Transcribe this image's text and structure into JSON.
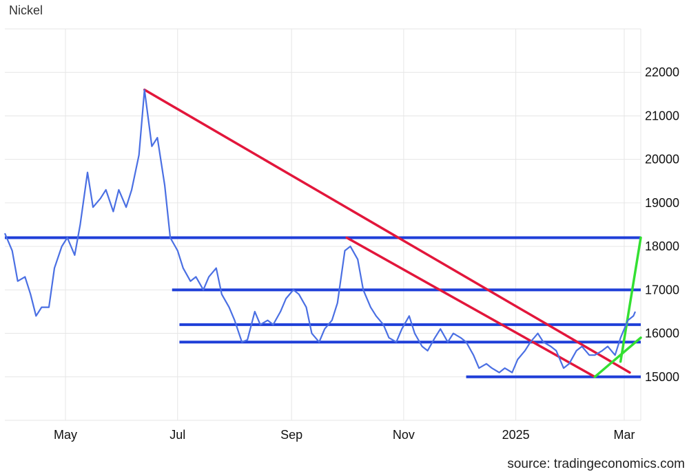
{
  "chart_data": {
    "type": "line",
    "title": "Nickel",
    "source": "source: tradingeconomics.com",
    "xlabel": "",
    "ylabel": "",
    "x_range": [
      "2024-03-29",
      "2025-03-10"
    ],
    "ylim": [
      14000,
      23000
    ],
    "yticks": [
      15000,
      16000,
      17000,
      18000,
      19000,
      20000,
      21000,
      22000
    ],
    "xticks": [
      {
        "date": "2024-05-01",
        "label": "May"
      },
      {
        "date": "2024-07-01",
        "label": "Jul"
      },
      {
        "date": "2024-09-01",
        "label": "Sep"
      },
      {
        "date": "2024-11-01",
        "label": "Nov"
      },
      {
        "date": "2025-01-01",
        "label": "2025"
      },
      {
        "date": "2025-03-01",
        "label": "Mar"
      }
    ],
    "grid": true,
    "colors": {
      "series": "#4a6fe3",
      "support": "#1f3fd8",
      "downtrend": "#e2163b",
      "uptrend": "#34e032"
    },
    "series": [
      {
        "color": "#4a6fe3",
        "points": [
          [
            "2024-03-29",
            18300
          ],
          [
            "2024-04-02",
            17900
          ],
          [
            "2024-04-05",
            17200
          ],
          [
            "2024-04-09",
            17300
          ],
          [
            "2024-04-12",
            16900
          ],
          [
            "2024-04-15",
            16400
          ],
          [
            "2024-04-18",
            16600
          ],
          [
            "2024-04-22",
            16600
          ],
          [
            "2024-04-25",
            17500
          ],
          [
            "2024-04-29",
            18000
          ],
          [
            "2024-05-02",
            18200
          ],
          [
            "2024-05-06",
            17800
          ],
          [
            "2024-05-09",
            18500
          ],
          [
            "2024-05-13",
            19700
          ],
          [
            "2024-05-16",
            18900
          ],
          [
            "2024-05-20",
            19100
          ],
          [
            "2024-05-23",
            19300
          ],
          [
            "2024-05-27",
            18800
          ],
          [
            "2024-05-30",
            19300
          ],
          [
            "2024-06-03",
            18900
          ],
          [
            "2024-06-06",
            19300
          ],
          [
            "2024-06-10",
            20100
          ],
          [
            "2024-06-13",
            21600
          ],
          [
            "2024-06-17",
            20300
          ],
          [
            "2024-06-20",
            20500
          ],
          [
            "2024-06-24",
            19400
          ],
          [
            "2024-06-27",
            18200
          ],
          [
            "2024-07-01",
            17900
          ],
          [
            "2024-07-04",
            17500
          ],
          [
            "2024-07-08",
            17200
          ],
          [
            "2024-07-11",
            17300
          ],
          [
            "2024-07-15",
            17000
          ],
          [
            "2024-07-18",
            17300
          ],
          [
            "2024-07-22",
            17500
          ],
          [
            "2024-07-25",
            16900
          ],
          [
            "2024-07-29",
            16600
          ],
          [
            "2024-08-01",
            16300
          ],
          [
            "2024-08-05",
            15800
          ],
          [
            "2024-08-08",
            15850
          ],
          [
            "2024-08-12",
            16500
          ],
          [
            "2024-08-15",
            16200
          ],
          [
            "2024-08-19",
            16300
          ],
          [
            "2024-08-22",
            16200
          ],
          [
            "2024-08-26",
            16500
          ],
          [
            "2024-08-29",
            16800
          ],
          [
            "2024-09-02",
            17000
          ],
          [
            "2024-09-05",
            16900
          ],
          [
            "2024-09-09",
            16600
          ],
          [
            "2024-09-12",
            16000
          ],
          [
            "2024-09-16",
            15800
          ],
          [
            "2024-09-19",
            16100
          ],
          [
            "2024-09-23",
            16300
          ],
          [
            "2024-09-26",
            16700
          ],
          [
            "2024-09-30",
            17900
          ],
          [
            "2024-10-03",
            18000
          ],
          [
            "2024-10-07",
            17700
          ],
          [
            "2024-10-10",
            17000
          ],
          [
            "2024-10-14",
            16600
          ],
          [
            "2024-10-17",
            16400
          ],
          [
            "2024-10-21",
            16200
          ],
          [
            "2024-10-24",
            15900
          ],
          [
            "2024-10-28",
            15800
          ],
          [
            "2024-10-31",
            16100
          ],
          [
            "2024-11-04",
            16400
          ],
          [
            "2024-11-07",
            16000
          ],
          [
            "2024-11-11",
            15700
          ],
          [
            "2024-11-14",
            15600
          ],
          [
            "2024-11-18",
            15900
          ],
          [
            "2024-11-21",
            16100
          ],
          [
            "2024-11-25",
            15800
          ],
          [
            "2024-11-28",
            16000
          ],
          [
            "2024-12-02",
            15900
          ],
          [
            "2024-12-05",
            15800
          ],
          [
            "2024-12-09",
            15500
          ],
          [
            "2024-12-12",
            15200
          ],
          [
            "2024-12-16",
            15300
          ],
          [
            "2024-12-19",
            15200
          ],
          [
            "2024-12-23",
            15100
          ],
          [
            "2024-12-26",
            15200
          ],
          [
            "2024-12-30",
            15100
          ],
          [
            "2025-01-02",
            15400
          ],
          [
            "2025-01-06",
            15600
          ],
          [
            "2025-01-09",
            15800
          ],
          [
            "2025-01-13",
            16000
          ],
          [
            "2025-01-16",
            15800
          ],
          [
            "2025-01-20",
            15700
          ],
          [
            "2025-01-23",
            15600
          ],
          [
            "2025-01-27",
            15200
          ],
          [
            "2025-01-30",
            15300
          ],
          [
            "2025-02-03",
            15600
          ],
          [
            "2025-02-06",
            15700
          ],
          [
            "2025-02-10",
            15500
          ],
          [
            "2025-02-13",
            15500
          ],
          [
            "2025-02-17",
            15600
          ],
          [
            "2025-02-20",
            15700
          ],
          [
            "2025-02-24",
            15500
          ],
          [
            "2025-02-27",
            15900
          ],
          [
            "2025-03-03",
            16300
          ],
          [
            "2025-03-06",
            16400
          ],
          [
            "2025-03-07",
            16500
          ]
        ]
      }
    ],
    "annotations": [
      {
        "kind": "horizontal",
        "color": "#1f3fd8",
        "y": 18200,
        "from": "2024-03-29",
        "to": "2025-03-10"
      },
      {
        "kind": "horizontal",
        "color": "#1f3fd8",
        "y": 17000,
        "from": "2024-06-28",
        "to": "2025-03-10"
      },
      {
        "kind": "horizontal",
        "color": "#1f3fd8",
        "y": 16200,
        "from": "2024-07-02",
        "to": "2025-03-10"
      },
      {
        "kind": "horizontal",
        "color": "#1f3fd8",
        "y": 15800,
        "from": "2024-07-02",
        "to": "2025-03-10"
      },
      {
        "kind": "horizontal",
        "color": "#1f3fd8",
        "y": 15000,
        "from": "2024-12-05",
        "to": "2025-03-10"
      },
      {
        "kind": "trend",
        "color": "#e2163b",
        "from": [
          "2024-06-13",
          21600
        ],
        "to": [
          "2025-03-04",
          15100
        ]
      },
      {
        "kind": "trend",
        "color": "#e2163b",
        "from": [
          "2024-10-01",
          18200
        ],
        "to": [
          "2025-02-13",
          15000
        ]
      },
      {
        "kind": "trend",
        "color": "#34e032",
        "from": [
          "2025-02-13",
          15000
        ],
        "to": [
          "2025-03-10",
          15900
        ]
      },
      {
        "kind": "trend",
        "color": "#34e032",
        "from": [
          "2025-02-27",
          15350
        ],
        "to": [
          "2025-03-10",
          18200
        ]
      }
    ]
  }
}
